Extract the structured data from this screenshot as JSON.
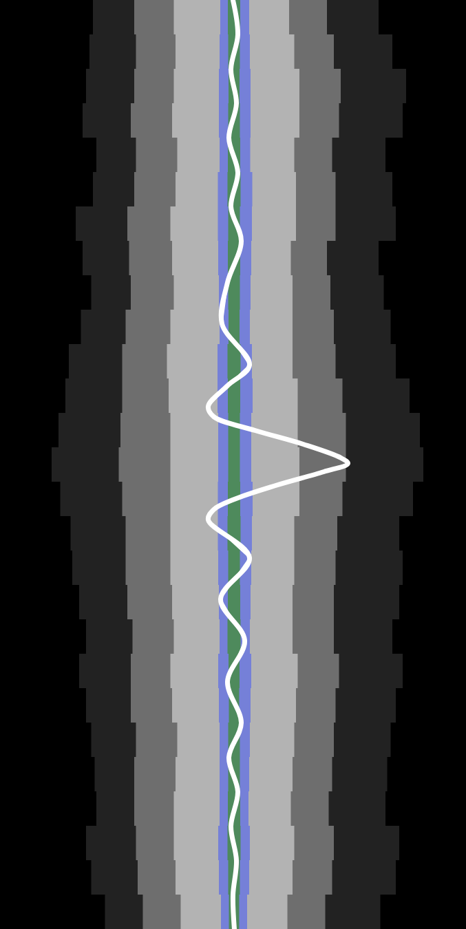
{
  "chart_data": {
    "type": "area",
    "tick_labels": false,
    "xlim": [
      0,
      677
    ],
    "ylim": [
      0,
      1350
    ],
    "y": [
      0,
      50,
      100,
      150,
      200,
      250,
      300,
      350,
      400,
      450,
      500,
      550,
      600,
      650,
      700,
      750,
      800,
      850,
      900,
      950,
      1000,
      1050,
      1100,
      1150,
      1200,
      1250,
      1300,
      1350
    ],
    "bands": [
      {
        "color": "#222222",
        "lower": [
          150,
          120,
          140,
          110,
          130,
          150,
          120,
          100,
          140,
          125,
          110,
          90,
          100,
          70,
          80,
          95,
          110,
          100,
          130,
          120,
          110,
          140,
          125,
          150,
          130,
          120,
          145,
          160
        ],
        "upper": [
          540,
          560,
          580,
          600,
          570,
          550,
          590,
          560,
          540,
          575,
          560,
          590,
          600,
          620,
          610,
          590,
          570,
          600,
          560,
          580,
          590,
          560,
          575,
          550,
          570,
          590,
          560,
          545
        ]
      },
      {
        "color": "#6e6e6e",
        "lower": [
          200,
          190,
          205,
          185,
          195,
          200,
          190,
          180,
          195,
          185,
          180,
          175,
          180,
          170,
          175,
          180,
          185,
          180,
          190,
          195,
          185,
          195,
          200,
          190,
          200,
          195,
          205,
          210
        ],
        "upper": [
          470,
          480,
          490,
          500,
          485,
          480,
          495,
          480,
          470,
          490,
          480,
          495,
          500,
          505,
          500,
          495,
          485,
          490,
          480,
          490,
          495,
          480,
          490,
          475,
          480,
          490,
          475,
          470
        ]
      },
      {
        "color": "#b3b3b3",
        "lower": [
          255,
          250,
          260,
          245,
          255,
          260,
          250,
          245,
          255,
          250,
          245,
          240,
          250,
          245,
          250,
          245,
          250,
          245,
          255,
          250,
          245,
          255,
          260,
          250,
          255,
          250,
          260,
          265
        ],
        "upper": [
          415,
          425,
          430,
          440,
          430,
          425,
          435,
          425,
          420,
          430,
          420,
          430,
          435,
          430,
          440,
          430,
          425,
          430,
          420,
          430,
          435,
          425,
          430,
          420,
          425,
          430,
          420,
          415
        ]
      },
      {
        "color": "#7580d8",
        "lower": [
          322,
          318,
          320,
          316,
          320,
          318,
          315,
          318,
          316,
          320,
          318,
          314,
          318,
          316,
          318,
          315,
          318,
          316,
          320,
          318,
          316,
          320,
          318,
          320,
          318,
          316,
          320,
          322
        ],
        "upper": [
          360,
          364,
          362,
          366,
          362,
          365,
          368,
          364,
          366,
          362,
          364,
          368,
          366,
          364,
          366,
          368,
          364,
          366,
          362,
          364,
          366,
          362,
          364,
          360,
          362,
          364,
          360,
          358
        ]
      },
      {
        "color": "#4e8a5c",
        "lower": [
          332,
          330,
          333,
          331,
          332,
          330,
          331,
          332,
          330,
          333,
          331,
          330,
          332,
          331,
          332,
          330,
          331,
          332,
          330,
          331,
          333,
          332,
          331,
          332,
          330,
          331,
          332,
          333
        ],
        "upper": [
          348,
          350,
          347,
          349,
          348,
          350,
          349,
          348,
          350,
          347,
          349,
          350,
          348,
          349,
          348,
          350,
          349,
          348,
          350,
          349,
          347,
          348,
          349,
          348,
          350,
          349,
          348,
          347
        ]
      }
    ],
    "line": {
      "color": "#ffffff",
      "y": [
        0,
        50,
        100,
        150,
        200,
        250,
        300,
        350,
        410,
        470,
        530,
        560,
        590,
        605,
        625,
        645,
        665,
        673,
        685,
        705,
        725,
        740,
        755,
        810,
        870,
        930,
        990,
        1050,
        1100,
        1150,
        1200,
        1250,
        1300,
        1350
      ],
      "values": [
        338,
        345,
        335,
        343,
        332,
        345,
        335,
        350,
        330,
        322,
        362,
        330,
        302,
        310,
        370,
        440,
        495,
        505,
        470,
        400,
        340,
        310,
        302,
        362,
        320,
        355,
        330,
        350,
        332,
        345,
        335,
        343,
        338,
        340
      ]
    }
  }
}
